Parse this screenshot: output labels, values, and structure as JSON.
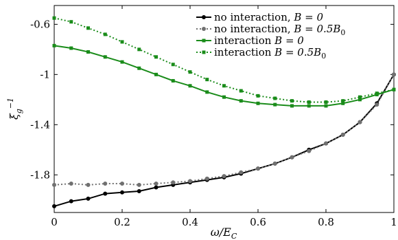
{
  "chart_data": {
    "type": "line",
    "xlabel": "ω/E_C",
    "ylabel": "ξ_g^{-1}",
    "xlim": [
      0,
      1
    ],
    "ylim": [
      -2.1,
      -0.45
    ],
    "xticks": [
      "0",
      "0.2",
      "0.4",
      "0.6",
      "0.8",
      "1"
    ],
    "yticks": [
      "-0.6",
      "-1",
      "-1.4",
      "-1.8"
    ],
    "grid": false,
    "legend_position": "top-right",
    "series": [
      {
        "name": "no interaction, B = 0",
        "label_text": "no interaction, ",
        "label_math": "B = 0",
        "color": "#000000",
        "linestyle": "solid",
        "marker": "circle",
        "x": [
          0,
          0.05,
          0.1,
          0.15,
          0.2,
          0.25,
          0.3,
          0.35,
          0.4,
          0.45,
          0.5,
          0.55,
          0.6,
          0.65,
          0.7,
          0.75,
          0.8,
          0.85,
          0.9,
          0.95,
          1
        ],
        "y": [
          -2.05,
          -2.01,
          -1.99,
          -1.95,
          -1.94,
          -1.93,
          -1.9,
          -1.88,
          -1.86,
          -1.84,
          -1.82,
          -1.79,
          -1.75,
          -1.71,
          -1.66,
          -1.6,
          -1.55,
          -1.48,
          -1.38,
          -1.23,
          -1.0
        ]
      },
      {
        "name": "no interaction, B = 0.5B0",
        "label_text": "no interaction, ",
        "label_math": "B = 0.5B",
        "label_sub": "0",
        "color": "#707070",
        "linestyle": "dotted",
        "marker": "circle",
        "x": [
          0,
          0.05,
          0.1,
          0.15,
          0.2,
          0.25,
          0.3,
          0.35,
          0.4,
          0.45,
          0.5,
          0.55,
          0.6,
          0.65,
          0.7,
          0.75,
          0.8,
          0.85,
          0.9,
          0.95,
          1
        ],
        "y": [
          -1.88,
          -1.87,
          -1.88,
          -1.87,
          -1.87,
          -1.88,
          -1.87,
          -1.86,
          -1.85,
          -1.83,
          -1.81,
          -1.78,
          -1.75,
          -1.71,
          -1.66,
          -1.61,
          -1.55,
          -1.48,
          -1.38,
          -1.24,
          -1.0
        ]
      },
      {
        "name": "interaction B = 0",
        "label_text": "interaction ",
        "label_math": "B = 0",
        "color": "#1a8c1a",
        "linestyle": "solid",
        "marker": "square",
        "x": [
          0,
          0.05,
          0.1,
          0.15,
          0.2,
          0.25,
          0.3,
          0.35,
          0.4,
          0.45,
          0.5,
          0.55,
          0.6,
          0.65,
          0.7,
          0.75,
          0.8,
          0.85,
          0.9,
          0.95,
          1
        ],
        "y": [
          -0.77,
          -0.79,
          -0.82,
          -0.86,
          -0.9,
          -0.95,
          -1.0,
          -1.05,
          -1.09,
          -1.14,
          -1.18,
          -1.21,
          -1.23,
          -1.24,
          -1.25,
          -1.25,
          -1.25,
          -1.23,
          -1.2,
          -1.16,
          -1.12
        ]
      },
      {
        "name": "interaction B = 0.5B0",
        "label_text": "interaction ",
        "label_math": "B = 0.5B",
        "label_sub": "0",
        "color": "#1a8c1a",
        "linestyle": "dotted",
        "marker": "square",
        "x": [
          0,
          0.05,
          0.1,
          0.15,
          0.2,
          0.25,
          0.3,
          0.35,
          0.4,
          0.45,
          0.5,
          0.55,
          0.6,
          0.65,
          0.7,
          0.75,
          0.8,
          0.85,
          0.9,
          0.95,
          1
        ],
        "y": [
          -0.55,
          -0.58,
          -0.63,
          -0.68,
          -0.74,
          -0.8,
          -0.86,
          -0.92,
          -0.98,
          -1.04,
          -1.09,
          -1.13,
          -1.17,
          -1.19,
          -1.21,
          -1.22,
          -1.22,
          -1.21,
          -1.18,
          -1.15,
          -1.12
        ]
      }
    ]
  }
}
